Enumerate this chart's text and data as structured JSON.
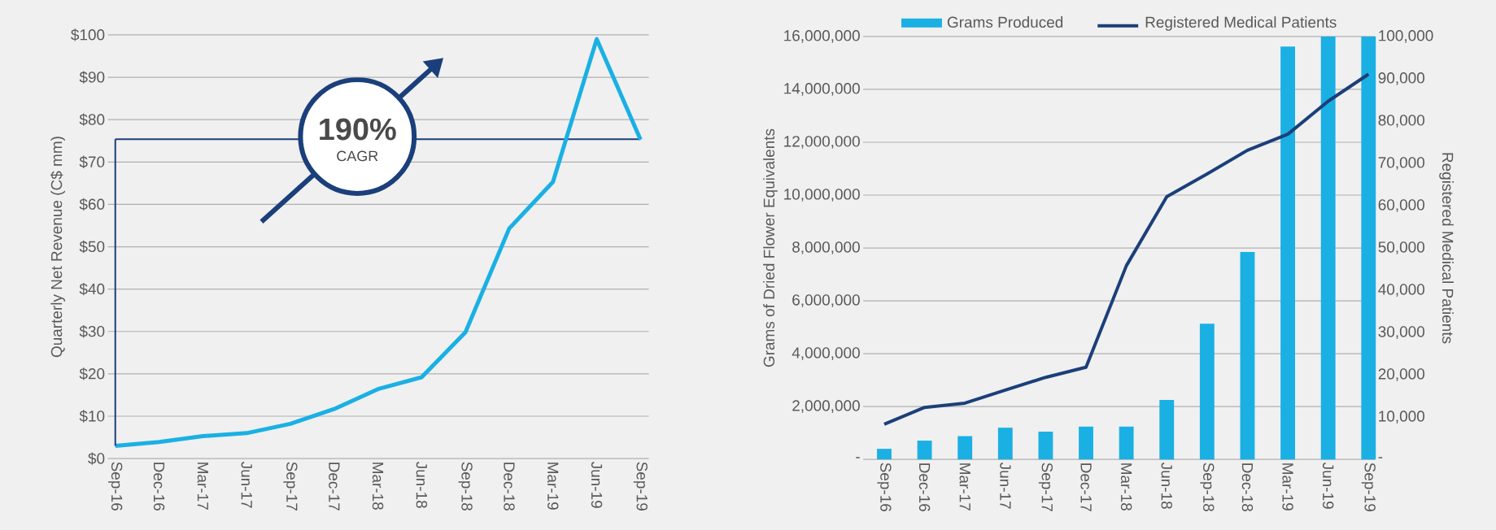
{
  "chart_data": [
    {
      "type": "line",
      "ylabel": "Quarterly Net Revenue (C$ mm)",
      "categories": [
        "Sep-16",
        "Dec-16",
        "Mar-17",
        "Jun-17",
        "Sep-17",
        "Dec-17",
        "Mar-18",
        "Jun-18",
        "Sep-18",
        "Dec-18",
        "Mar-19",
        "Jun-19",
        "Sep-19"
      ],
      "values": [
        3.0,
        3.9,
        5.3,
        6.0,
        8.2,
        11.7,
        16.4,
        19.2,
        29.8,
        54.3,
        65.3,
        99.0,
        75.3
      ],
      "color": "#1ab0e4",
      "ylim": [
        0,
        100
      ],
      "yticks": [
        {
          "value": 0,
          "label": "$0"
        },
        {
          "value": 10,
          "label": "$10"
        },
        {
          "value": 20,
          "label": "$20"
        },
        {
          "value": 30,
          "label": "$30"
        },
        {
          "value": 40,
          "label": "$40"
        },
        {
          "value": 50,
          "label": "$50"
        },
        {
          "value": 60,
          "label": "$60"
        },
        {
          "value": 70,
          "label": "$70"
        },
        {
          "value": 80,
          "label": "$80"
        },
        {
          "value": 90,
          "label": "$90"
        },
        {
          "value": 100,
          "label": "$100"
        }
      ],
      "grid": "y",
      "annotations": [
        "190%",
        "CAGR"
      ],
      "ref_lines": [
        {
          "axis": "y",
          "value": 75.4,
          "color": "#1b3f7a"
        }
      ]
    },
    {
      "type": "bar",
      "ylabel": "Grams of Dried Flower Equivalents",
      "y2label": "Registered Medical Patients",
      "categories": [
        "Sep-16",
        "Dec-16",
        "Mar-17",
        "Jun-17",
        "Sep-17",
        "Dec-17",
        "Mar-18",
        "Jun-18",
        "Sep-18",
        "Dec-18",
        "Mar-19",
        "Jun-19",
        "Sep-19"
      ],
      "series": [
        {
          "name": "Grams Produced",
          "type": "bar",
          "color": "#1ab0e4",
          "values": [
            400000,
            710000,
            880000,
            1200000,
            1050000,
            1240000,
            1240000,
            2250000,
            5130000,
            7850000,
            15620000,
            16000000,
            16000000
          ]
        },
        {
          "name": "Registered Medical Patients",
          "type": "line",
          "axis": "y2",
          "color": "#1b3f7a",
          "values": [
            8300,
            12300,
            13300,
            16400,
            19400,
            21800,
            45800,
            62100,
            67500,
            73100,
            76900,
            84700,
            91100
          ]
        }
      ],
      "ylim": [
        0,
        16000000
      ],
      "yticks": [
        {
          "value": 0,
          "label": "-"
        },
        {
          "value": 2000000,
          "label": "2,000,000"
        },
        {
          "value": 4000000,
          "label": "4,000,000"
        },
        {
          "value": 6000000,
          "label": "6,000,000"
        },
        {
          "value": 8000000,
          "label": "8,000,000"
        },
        {
          "value": 10000000,
          "label": "10,000,000"
        },
        {
          "value": 12000000,
          "label": "12,000,000"
        },
        {
          "value": 14000000,
          "label": "14,000,000"
        },
        {
          "value": 16000000,
          "label": "16,000,000"
        }
      ],
      "y2lim": [
        0,
        100000
      ],
      "y2ticks": [
        {
          "value": 0,
          "label": "-"
        },
        {
          "value": 10000,
          "label": "10,000"
        },
        {
          "value": 20000,
          "label": "20,000"
        },
        {
          "value": 30000,
          "label": "30,000"
        },
        {
          "value": 40000,
          "label": "40,000"
        },
        {
          "value": 50000,
          "label": "50,000"
        },
        {
          "value": 60000,
          "label": "60,000"
        },
        {
          "value": 70000,
          "label": "70,000"
        },
        {
          "value": 80000,
          "label": "80,000"
        },
        {
          "value": 90000,
          "label": "90,000"
        },
        {
          "value": 100000,
          "label": "100,000"
        }
      ],
      "grid": "y",
      "legend": "top"
    }
  ]
}
